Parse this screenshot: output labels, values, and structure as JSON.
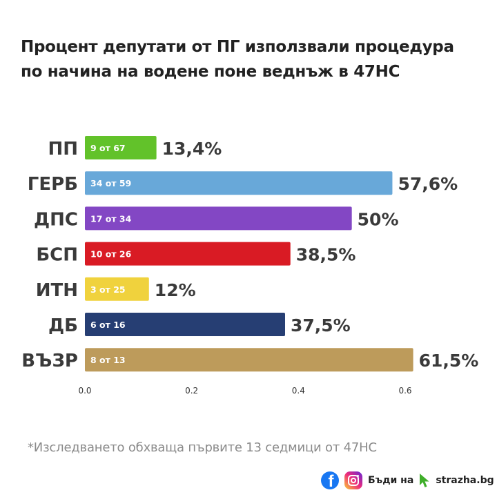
{
  "title": {
    "line1": "Процент депутати от ПГ използвали процедура",
    "line2": "по начина на водене поне веднъж в 47НС"
  },
  "footnote": "*Изследването обхваща първите 13 седмици от 47НС",
  "branding": {
    "facebook_icon": "facebook-icon",
    "instagram_icon": "instagram-icon",
    "text_part1": "Бъди на",
    "text_part2": "strazha.bg",
    "cursor_icon": "cursor-icon",
    "cursor_color": "#3fae2a"
  },
  "chart_data": {
    "type": "bar",
    "orientation": "horizontal",
    "categories": [
      "ПП",
      "ГЕРБ",
      "ДПС",
      "БСП",
      "ИТН",
      "ДБ",
      "ВЪЗР"
    ],
    "values": [
      0.134,
      0.576,
      0.5,
      0.385,
      0.12,
      0.375,
      0.615
    ],
    "value_labels": [
      "13,4%",
      "57,6%",
      "50%",
      "38,5%",
      "12%",
      "37,5%",
      "61,5%"
    ],
    "inner_labels": [
      "9 от 67",
      "34 от 59",
      "17 от 34",
      "10 от 26",
      "3 от 25",
      "6 от 16",
      "8 от 13"
    ],
    "colors": [
      "#62c22a",
      "#68a8d9",
      "#8347c4",
      "#d91b24",
      "#f0d23d",
      "#263e73",
      "#bd9b5b"
    ],
    "xlim": [
      0,
      0.62
    ],
    "xticks": [
      "0.0",
      "0.2",
      "0.4",
      "0.6"
    ],
    "xtick_values": [
      0,
      0.2,
      0.4,
      0.6
    ],
    "grid": false
  }
}
